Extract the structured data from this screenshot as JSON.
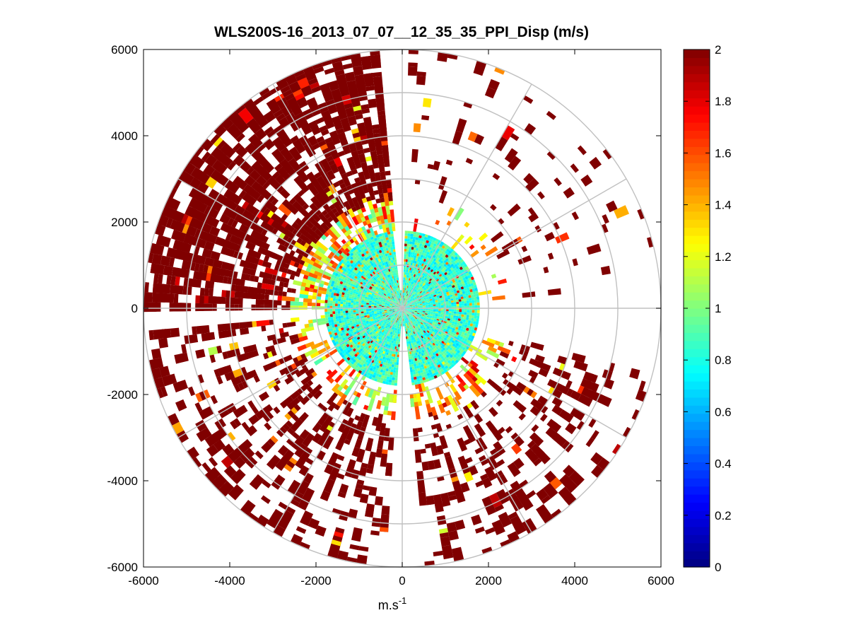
{
  "chart_data": {
    "type": "heatmap",
    "subtype": "polar-ppi-scan",
    "title": "WLS200S-16_2013_07_07__12_35_35_PPI_Disp (m/s)",
    "xlabel_base": "m.s",
    "xlabel_exponent": "-1",
    "ylabel": "",
    "xlim": [
      -6000,
      6000
    ],
    "ylim": [
      -6000,
      6000
    ],
    "x_ticks": [
      -6000,
      -4000,
      -2000,
      0,
      2000,
      4000,
      6000
    ],
    "y_ticks": [
      -6000,
      -4000,
      -2000,
      0,
      2000,
      4000,
      6000
    ],
    "x_tick_labels": [
      "-6000",
      "-4000",
      "-2000",
      "0",
      "2000",
      "4000",
      "6000"
    ],
    "y_tick_labels": [
      "-6000",
      "-4000",
      "-2000",
      "0",
      "2000",
      "4000",
      "6000"
    ],
    "polar_grid": {
      "ring_radii": [
        1000,
        2000,
        3000,
        4000,
        5000,
        6000
      ],
      "spoke_angles_deg": [
        0,
        30,
        60,
        90,
        120,
        150,
        180,
        210,
        240,
        270,
        300,
        330
      ],
      "color": "#c0c0c0"
    },
    "colorbar": {
      "min": 0,
      "max": 2,
      "ticks": [
        0,
        0.2,
        0.4,
        0.6,
        0.8,
        1,
        1.2,
        1.4,
        1.6,
        1.8,
        2
      ],
      "tick_labels": [
        "0",
        "0.2",
        "0.4",
        "0.6",
        "0.8",
        "1",
        "1.2",
        "1.4",
        "1.6",
        "1.8",
        "2"
      ],
      "colormap": "jet"
    },
    "scan": {
      "description_value_range": [
        0,
        2
      ],
      "inner_region_max_range_m": 1800,
      "inner_region_typical_value": 0.85,
      "outer_region_typical_value": 2,
      "max_range_m": 6000,
      "sectors": [
        {
          "name": "north-west",
          "start_deg": 95,
          "end_deg": 180,
          "density": 0.55,
          "inner_value": 0.85,
          "outer_value": 2
        },
        {
          "name": "south-west",
          "start_deg": 185,
          "end_deg": 265,
          "density": 0.28,
          "inner_value": 0.9,
          "outer_value": 2
        },
        {
          "name": "south-east",
          "start_deg": 275,
          "end_deg": 345,
          "density": 0.22,
          "inner_value": 1.0,
          "outer_value": 2
        },
        {
          "name": "north-east",
          "start_deg": 5,
          "end_deg": 88,
          "density": 0.07,
          "inner_value": 0.9,
          "outer_value": 2
        }
      ]
    }
  }
}
